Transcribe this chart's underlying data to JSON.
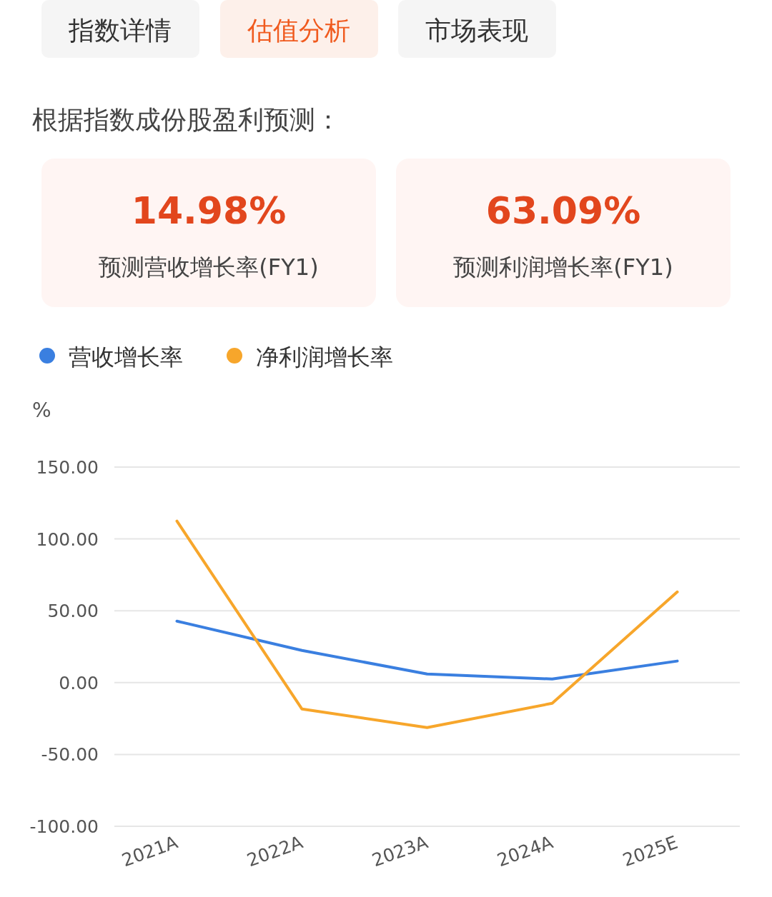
{
  "chart_data": [
    {
      "type": "other",
      "annotations": [
        "指数详情",
        "估值分析",
        "市场表现"
      ],
      "colors": [
        "#333333",
        "#f05a1e",
        "#333333"
      ],
      "subtitle": "根据指数成份股盈利预测："
    },
    {
      "type": "other",
      "title": "14.98%",
      "subtitle": "预测营收增长率(FY1)"
    },
    {
      "type": "other",
      "title": "63.09%",
      "subtitle": "预测利润增长率(FY1)"
    },
    {
      "type": "line",
      "categories": [
        "2021A",
        "2022A",
        "2023A",
        "2024A",
        "2025E"
      ],
      "ylabel": "%",
      "ylim": [
        -100,
        150
      ],
      "yticks": [
        {
          "value": -100,
          "label": "-100.00"
        },
        {
          "value": -50,
          "label": "-50.00"
        },
        {
          "value": 0,
          "label": "0.00"
        },
        {
          "value": 50,
          "label": "50.00"
        },
        {
          "value": 100,
          "label": "100.00"
        },
        {
          "value": 150,
          "label": "150.00"
        }
      ],
      "grid": "y",
      "legend": "top left",
      "marker": "none",
      "series": [
        {
          "name": "营收增长率",
          "color": "#3a7fe0",
          "values": [
            42.8,
            22.4,
            6.0,
            2.5,
            15.0
          ]
        },
        {
          "name": "净利润增长率",
          "color": "#f7a62b",
          "values": [
            112.4,
            -18.4,
            -31.3,
            -14.4,
            63.1
          ]
        }
      ]
    }
  ]
}
